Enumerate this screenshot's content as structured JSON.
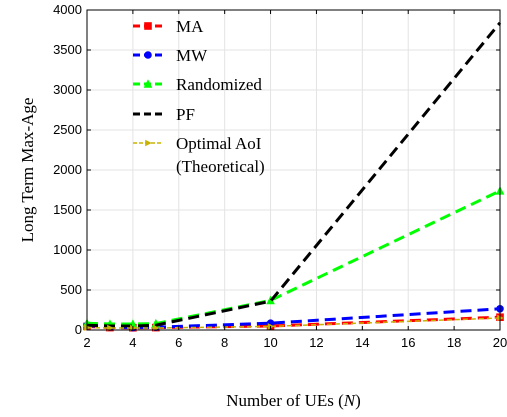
{
  "chart_data": {
    "type": "line",
    "xlabel": "Number of UEs",
    "xlabel_var": "N",
    "ylabel": "Long Term Max-Age",
    "xlim": [
      2,
      20
    ],
    "ylim": [
      0,
      4000
    ],
    "xticks": [
      2,
      4,
      6,
      8,
      10,
      12,
      14,
      16,
      18,
      20
    ],
    "yticks": [
      0,
      500,
      1000,
      1500,
      2000,
      2500,
      3000,
      3500,
      4000
    ],
    "grid": true,
    "legend_position": "top-left",
    "series": [
      {
        "name": "MA",
        "color": "#ff0000",
        "marker": "square",
        "x": [
          2,
          3,
          4,
          5,
          10,
          20
        ],
        "y": [
          45,
          30,
          28,
          30,
          50,
          160
        ]
      },
      {
        "name": "MW",
        "color": "#0000ff",
        "marker": "circle",
        "x": [
          2,
          3,
          4,
          5,
          10,
          20
        ],
        "y": [
          55,
          38,
          30,
          35,
          85,
          265
        ]
      },
      {
        "name": "Randomized",
        "color": "#00ff00",
        "marker": "triangle",
        "x": [
          2,
          3,
          4,
          5,
          10,
          20
        ],
        "y": [
          85,
          75,
          75,
          80,
          370,
          1740
        ]
      },
      {
        "name": "PF",
        "color": "#000000",
        "marker": "none",
        "x": [
          2,
          3,
          4,
          5,
          10,
          20
        ],
        "y": [
          60,
          50,
          50,
          60,
          360,
          3840
        ]
      },
      {
        "name": "Optimal AoI (Theoretical)",
        "name_lines": [
          "Optimal AoI",
          "(Theoretical)"
        ],
        "color": "#c8b400",
        "marker": "triangle-right",
        "x": [
          2,
          3,
          4,
          5,
          10,
          20
        ],
        "y": [
          30,
          25,
          25,
          25,
          45,
          150
        ]
      }
    ]
  }
}
